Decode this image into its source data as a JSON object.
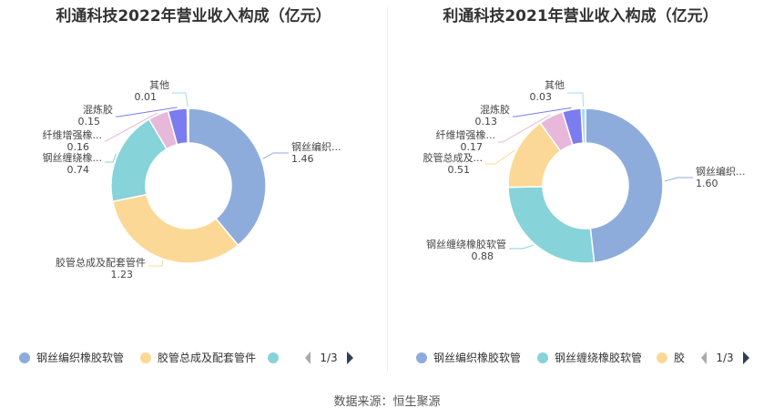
{
  "source": "数据来源：恒生聚源",
  "colors": [
    "#8eacdb",
    "#fcd896",
    "#86d3d9",
    "#e7b8d9",
    "#7b7cf0",
    "#5e6bd1"
  ],
  "chart_data": [
    {
      "type": "pie",
      "title": "利通科技2022年营业收入构成（亿元）",
      "slices": [
        {
          "name": "钢丝编织橡胶软管",
          "label": "钢丝编织...",
          "value": 1.46,
          "value_label": "1.46",
          "color": "#8eacdb"
        },
        {
          "name": "胶管总成及配套管件",
          "label": "胶管总成及配套管件",
          "value": 1.23,
          "value_label": "1.23",
          "color": "#fcd896"
        },
        {
          "name": "钢丝缠绕橡胶软管",
          "label": "钢丝缠绕橡...",
          "value": 0.74,
          "value_label": "0.74",
          "color": "#86d3d9"
        },
        {
          "name": "纤维增强橡胶软管",
          "label": "纤维增强橡...",
          "value": 0.16,
          "value_label": "0.16",
          "color": "#e7b8d9"
        },
        {
          "name": "混炼胶",
          "label": "混炼胶",
          "value": 0.15,
          "value_label": "0.15",
          "color": "#7b7cf0"
        },
        {
          "name": "其他",
          "label": "其他",
          "value": 0.01,
          "value_label": "0.01",
          "color": "#a9d8f5"
        }
      ],
      "legend": {
        "position": "bottom",
        "items": [
          "钢丝编织橡胶软管",
          "胶管总成及配套管件",
          ""
        ],
        "page": "1/3"
      }
    },
    {
      "type": "pie",
      "title": "利通科技2021年营业收入构成（亿元）",
      "slices": [
        {
          "name": "钢丝编织橡胶软管",
          "label": "钢丝编织...",
          "value": 1.6,
          "value_label": "1.60",
          "color": "#8eacdb"
        },
        {
          "name": "钢丝缠绕橡胶软管",
          "label": "钢丝缠绕橡胶软管",
          "value": 0.88,
          "value_label": "0.88",
          "color": "#86d3d9"
        },
        {
          "name": "胶管总成及配套管件",
          "label": "胶管总成及...",
          "value": 0.51,
          "value_label": "0.51",
          "color": "#fcd896"
        },
        {
          "name": "纤维增强橡胶软管",
          "label": "纤维增强橡...",
          "value": 0.17,
          "value_label": "0.17",
          "color": "#e7b8d9"
        },
        {
          "name": "混炼胶",
          "label": "混炼胶",
          "value": 0.13,
          "value_label": "0.13",
          "color": "#7b7cf0"
        },
        {
          "name": "其他",
          "label": "其他",
          "value": 0.03,
          "value_label": "0.03",
          "color": "#a9d8f5"
        }
      ],
      "legend": {
        "position": "bottom",
        "items": [
          "钢丝编织橡胶软管",
          "钢丝缠绕橡胶软管",
          "胶"
        ],
        "page": "1/3"
      }
    }
  ]
}
